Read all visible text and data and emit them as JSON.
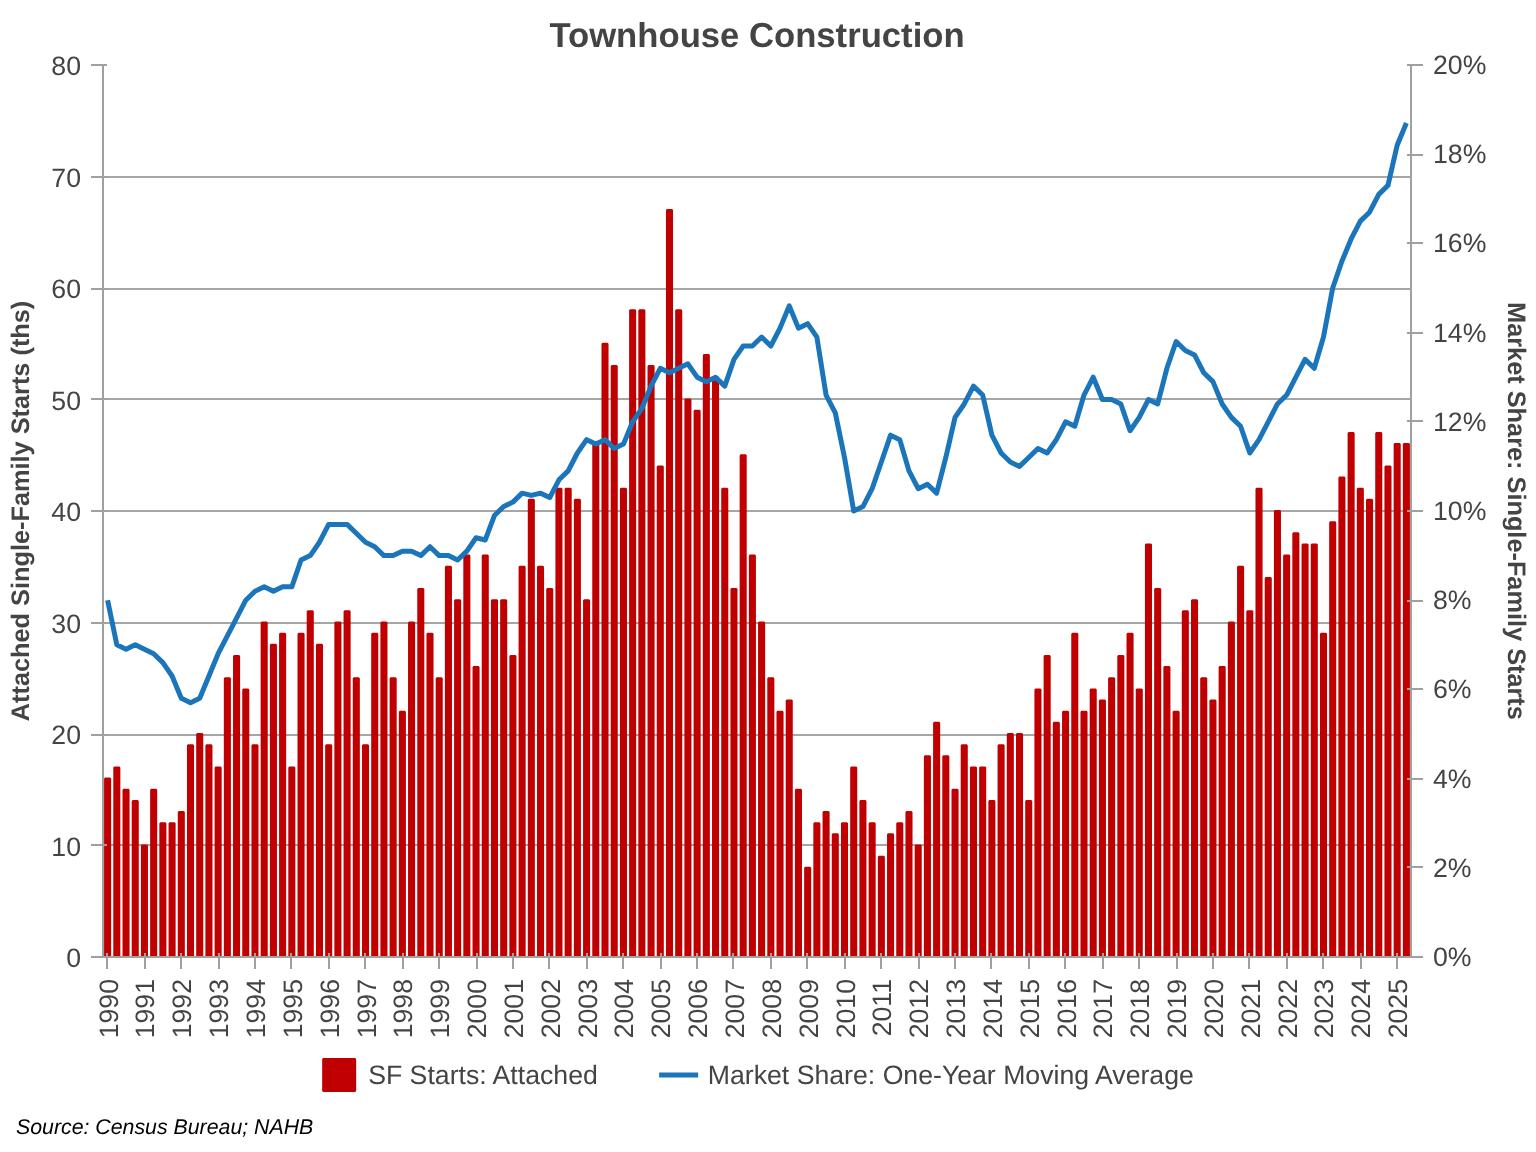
{
  "chart_data": {
    "type": "bar",
    "title": "Townhouse Construction",
    "ylabel": "Attached Single-Family Starts (ths)",
    "y2label": "Market Share: Single-Family Starts",
    "categories": [
      "1990",
      null,
      null,
      null,
      "1991",
      null,
      null,
      null,
      "1992",
      null,
      null,
      null,
      "1993",
      null,
      null,
      null,
      "1994",
      null,
      null,
      null,
      "1995",
      null,
      null,
      null,
      "1996",
      null,
      null,
      null,
      "1997",
      null,
      null,
      null,
      "1998",
      null,
      null,
      null,
      "1999",
      null,
      null,
      null,
      "2000",
      null,
      null,
      null,
      "2001",
      null,
      null,
      null,
      "2002",
      null,
      null,
      null,
      "2003",
      null,
      null,
      null,
      "2004",
      null,
      null,
      null,
      "2005",
      null,
      null,
      null,
      "2006",
      null,
      null,
      null,
      "2007",
      null,
      null,
      null,
      "2008",
      null,
      null,
      null,
      "2009",
      null,
      null,
      null,
      "2010",
      null,
      null,
      null,
      "2011",
      null,
      null,
      null,
      "2012",
      null,
      null,
      null,
      "2013",
      null,
      null,
      null,
      "2014",
      null,
      null,
      null,
      "2015",
      null,
      null,
      null,
      "2016",
      null,
      null,
      null,
      "2017",
      null,
      null,
      null,
      "2018",
      null,
      null,
      null,
      "2019",
      null,
      null,
      null,
      "2020",
      null,
      null,
      null,
      "2021",
      null,
      null,
      null,
      "2022",
      null,
      null,
      null,
      "2023",
      null,
      null,
      null,
      "2024",
      null,
      null,
      null,
      "2025",
      null
    ],
    "series": [
      {
        "name": "SF Starts: Attached",
        "color": "#c00000",
        "values": [
          16,
          17,
          15,
          14,
          10,
          15,
          12,
          12,
          13,
          19,
          20,
          19,
          17,
          25,
          27,
          24,
          19,
          30,
          28,
          29,
          17,
          29,
          31,
          28,
          19,
          30,
          31,
          25,
          19,
          29,
          30,
          25,
          22,
          30,
          33,
          29,
          25,
          35,
          32,
          36,
          26,
          36,
          32,
          32,
          27,
          35,
          41,
          35,
          33,
          42,
          42,
          41,
          32,
          46,
          55,
          53,
          42,
          58,
          58,
          53,
          44,
          67,
          58,
          50,
          49,
          54,
          52,
          42,
          33,
          45,
          36,
          30,
          25,
          22,
          23,
          15,
          8,
          12,
          13,
          11,
          12,
          17,
          14,
          12,
          9,
          11,
          12,
          13,
          10,
          18,
          21,
          18,
          15,
          19,
          17,
          17,
          14,
          19,
          20,
          20,
          14,
          24,
          27,
          21,
          22,
          29,
          22,
          24,
          23,
          25,
          27,
          29,
          24,
          37,
          33,
          26,
          22,
          31,
          32,
          25,
          23,
          26,
          30,
          35,
          31,
          42,
          34,
          40,
          36,
          38,
          37,
          37,
          29,
          39,
          43,
          47,
          42,
          41,
          47,
          44,
          46,
          46
        ]
      },
      {
        "name": "Market Share: One-Year Moving Average",
        "type": "line",
        "axis": "y2",
        "color": "#1b75bb",
        "values": [
          8.0,
          7.0,
          6.9,
          7.0,
          6.9,
          6.8,
          6.6,
          6.3,
          5.8,
          5.7,
          5.8,
          6.3,
          6.8,
          7.2,
          7.6,
          8.0,
          8.2,
          8.3,
          8.2,
          8.3,
          8.3,
          8.9,
          9.0,
          9.3,
          9.7,
          9.7,
          9.7,
          9.5,
          9.3,
          9.2,
          9.0,
          9.0,
          9.1,
          9.1,
          9.0,
          9.2,
          9.0,
          9.0,
          8.9,
          9.1,
          9.4,
          9.35,
          9.9,
          10.1,
          10.2,
          10.4,
          10.35,
          10.4,
          10.3,
          10.7,
          10.9,
          11.3,
          11.6,
          11.5,
          11.6,
          11.4,
          11.5,
          12.0,
          12.3,
          12.8,
          13.2,
          13.1,
          13.2,
          13.3,
          13.0,
          12.9,
          13.0,
          12.8,
          13.4,
          13.7,
          13.7,
          13.9,
          13.7,
          14.1,
          14.6,
          14.1,
          14.2,
          13.9,
          12.6,
          12.2,
          11.2,
          10.0,
          10.1,
          10.5,
          11.1,
          11.7,
          11.6,
          10.9,
          10.5,
          10.6,
          10.4,
          11.2,
          12.1,
          12.4,
          12.8,
          12.6,
          11.7,
          11.3,
          11.1,
          11.0,
          11.2,
          11.4,
          11.3,
          11.6,
          12.0,
          11.9,
          12.6,
          13.0,
          12.5,
          12.5,
          12.4,
          11.8,
          12.1,
          12.5,
          12.4,
          13.2,
          13.8,
          13.6,
          13.5,
          13.1,
          12.9,
          12.4,
          12.1,
          11.9,
          11.3,
          11.6,
          12.0,
          12.4,
          12.6,
          13.0,
          13.4,
          13.2,
          13.9,
          15.0,
          15.6,
          16.1,
          16.5,
          16.7,
          17.1,
          17.3,
          18.2,
          18.7
        ]
      }
    ],
    "ylim": [
      0,
      80
    ],
    "yticks": [
      0,
      10,
      20,
      30,
      40,
      50,
      60,
      70,
      80
    ],
    "y2lim": [
      0,
      20
    ],
    "y2ticks": [
      {
        "value": 0,
        "label": "0%"
      },
      {
        "value": 2,
        "label": "2%"
      },
      {
        "value": 4,
        "label": "4%"
      },
      {
        "value": 6,
        "label": "6%"
      },
      {
        "value": 8,
        "label": "8%"
      },
      {
        "value": 10,
        "label": "10%"
      },
      {
        "value": 12,
        "label": "12%"
      },
      {
        "value": 14,
        "label": "14%"
      },
      {
        "value": 16,
        "label": "16%"
      },
      {
        "value": 18,
        "label": "18%"
      },
      {
        "value": 20,
        "label": "20%"
      }
    ],
    "grid": "y",
    "legend": "bottom",
    "annotations": [
      "Source: Census Bureau; NAHB"
    ]
  }
}
